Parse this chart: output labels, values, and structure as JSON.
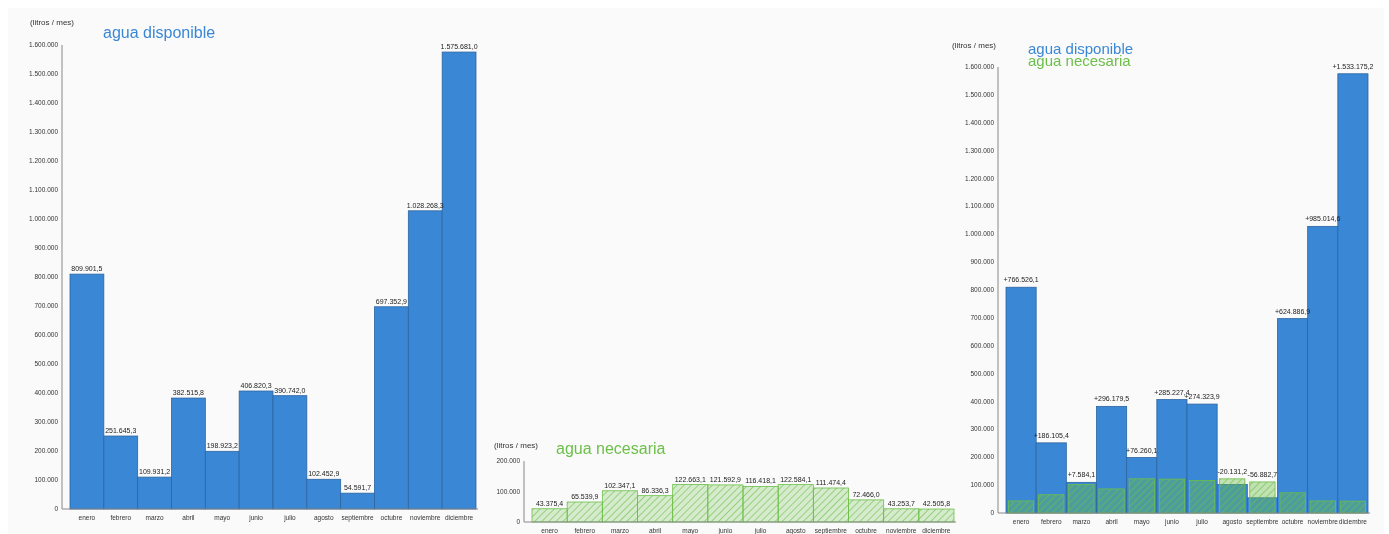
{
  "chart_data": [
    {
      "type": "bar",
      "title": "agua disponible",
      "ylabel": "(litros / mes)",
      "categories": [
        "enero",
        "febrero",
        "marzo",
        "abril",
        "mayo",
        "junio",
        "julio",
        "agosto",
        "septiembre",
        "octubre",
        "noviembre",
        "diciembre"
      ],
      "series": [
        {
          "color": "#3a87d6",
          "values": [
            809901.5,
            251645.3,
            109931.2,
            382515.8,
            198923.2,
            406820.3,
            390742.0,
            102452.9,
            54591.7,
            697352.9,
            1028268.3,
            1575681.0
          ],
          "value_labels": [
            "809.901,5",
            "251.645,3",
            "109.931,2",
            "382.515,8",
            "198.923,2",
            "406.820,3",
            "390.742,0",
            "102.452,9",
            "54.591,7",
            "697.352,9",
            "1.028.268,3",
            "1.575.681,0"
          ]
        }
      ],
      "ylim": [
        0,
        1600000
      ],
      "yticks": [
        {
          "value": 0,
          "label": "0"
        },
        {
          "value": 100000,
          "label": "100.000"
        },
        {
          "value": 200000,
          "label": "200.000"
        },
        {
          "value": 300000,
          "label": "300.000"
        },
        {
          "value": 400000,
          "label": "400.000"
        },
        {
          "value": 500000,
          "label": "500.000"
        },
        {
          "value": 600000,
          "label": "600.000"
        },
        {
          "value": 700000,
          "label": "700.000"
        },
        {
          "value": 800000,
          "label": "800.000"
        },
        {
          "value": 900000,
          "label": "900.000"
        },
        {
          "value": 1000000,
          "label": "1.000.000"
        },
        {
          "value": 1100000,
          "label": "1.100.000"
        },
        {
          "value": 1200000,
          "label": "1.200.000"
        },
        {
          "value": 1300000,
          "label": "1.300.000"
        },
        {
          "value": 1400000,
          "label": "1.400.000"
        },
        {
          "value": 1500000,
          "label": "1.500.000"
        },
        {
          "value": 1600000,
          "label": "1.600.000"
        }
      ]
    },
    {
      "type": "bar",
      "title": "agua necesaria",
      "ylabel": "(litros / mes)",
      "categories": [
        "enero",
        "febrero",
        "marzo",
        "abril",
        "mayo",
        "junio",
        "julio",
        "agosto",
        "septiembre",
        "octubre",
        "noviembre",
        "diciembre"
      ],
      "series": [
        {
          "color": "#6cbf48",
          "values": [
            43375.4,
            65539.9,
            102347.1,
            86336.3,
            122663.1,
            121592.9,
            116418.1,
            122584.1,
            111474.4,
            72466.0,
            43253.7,
            42505.8
          ],
          "value_labels": [
            "43.375,4",
            "65.539,9",
            "102.347,1",
            "86.336,3",
            "122.663,1",
            "121.592,9",
            "116.418,1",
            "122.584,1",
            "111.474,4",
            "72.466,0",
            "43.253,7",
            "42.505,8"
          ]
        }
      ],
      "ylim": [
        0,
        200000
      ],
      "yticks": [
        {
          "value": 0,
          "label": "0"
        },
        {
          "value": 100000,
          "label": "100.000"
        },
        {
          "value": 200000,
          "label": "200.000"
        }
      ]
    },
    {
      "type": "bar",
      "ylabel": "(litros / mes)",
      "legend": "top left",
      "categories": [
        "enero",
        "febrero",
        "marzo",
        "abril",
        "mayo",
        "junio",
        "julio",
        "agosto",
        "septiembre",
        "octubre",
        "noviembre",
        "diciembre"
      ],
      "annotations": [
        {
          "text": "+766.526,1",
          "x": "enero",
          "y": 809901.5
        },
        {
          "text": "+186.105,4",
          "x": "febrero",
          "y": 251645.3
        },
        {
          "text": "+7.584,1",
          "x": "marzo",
          "y": 109931.2
        },
        {
          "text": "+296.179,5",
          "x": "abril",
          "y": 382515.8
        },
        {
          "text": "+76.260,1",
          "x": "mayo",
          "y": 198923.2
        },
        {
          "text": "+285.227,4",
          "x": "junio",
          "y": 406820.3
        },
        {
          "text": "+274.323,9",
          "x": "julio",
          "y": 390742.0
        },
        {
          "text": "-20.131,2",
          "x": "agosto",
          "y": 122584.1
        },
        {
          "text": "-56.882,7",
          "x": "septiembre",
          "y": 111474.4
        },
        {
          "text": "+624.886,9",
          "x": "octubre",
          "y": 697352.9
        },
        {
          "text": "+985.014,6",
          "x": "noviembre",
          "y": 1028268.3
        },
        {
          "text": "+1.533.175,2",
          "x": "diciembre",
          "y": 1575681.0
        }
      ],
      "series": [
        {
          "name": "agua disponible",
          "color": "#3a87d6",
          "values": [
            809901.5,
            251645.3,
            109931.2,
            382515.8,
            198923.2,
            406820.3,
            390742.0,
            102452.9,
            54591.7,
            697352.9,
            1028268.3,
            1575681.0
          ]
        },
        {
          "name": "agua necesaria",
          "color": "#6cbf48",
          "values": [
            43375.4,
            65539.9,
            102347.1,
            86336.3,
            122663.1,
            121592.9,
            116418.1,
            122584.1,
            111474.4,
            72466.0,
            43253.7,
            42505.8
          ]
        }
      ],
      "ylim": [
        0,
        1600000
      ],
      "yticks": [
        {
          "value": 0,
          "label": "0"
        },
        {
          "value": 100000,
          "label": "100.000"
        },
        {
          "value": 200000,
          "label": "200.000"
        },
        {
          "value": 300000,
          "label": "300.000"
        },
        {
          "value": 400000,
          "label": "400.000"
        },
        {
          "value": 500000,
          "label": "500.000"
        },
        {
          "value": 600000,
          "label": "600.000"
        },
        {
          "value": 700000,
          "label": "700.000"
        },
        {
          "value": 800000,
          "label": "800.000"
        },
        {
          "value": 900000,
          "label": "900.000"
        },
        {
          "value": 1000000,
          "label": "1.000.000"
        },
        {
          "value": 1100000,
          "label": "1.100.000"
        },
        {
          "value": 1200000,
          "label": "1.200.000"
        },
        {
          "value": 1300000,
          "label": "1.300.000"
        },
        {
          "value": 1400000,
          "label": "1.400.000"
        },
        {
          "value": 1500000,
          "label": "1.500.000"
        },
        {
          "value": 1600000,
          "label": "1.600.000"
        }
      ]
    }
  ]
}
